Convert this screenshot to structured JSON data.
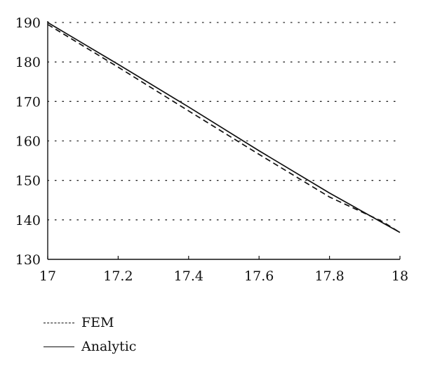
{
  "chart_data": {
    "type": "line",
    "title": "",
    "xlabel": "",
    "ylabel": "",
    "xlim": [
      17,
      18
    ],
    "ylim": [
      130,
      190
    ],
    "x_ticks": [
      17,
      17.2,
      17.4,
      17.6,
      17.8,
      18
    ],
    "x_tick_labels": [
      "17",
      "17.2",
      "17.4",
      "17.6",
      "17.8",
      "18"
    ],
    "y_ticks": [
      130,
      140,
      150,
      160,
      170,
      180,
      190
    ],
    "y_tick_labels": [
      "130",
      "140",
      "150",
      "160",
      "170",
      "180",
      "190"
    ],
    "grid": "horizontal dotted",
    "legend_position": "bottom-left",
    "series": [
      {
        "name": "FEM",
        "style": "dashed",
        "color": "#111111",
        "x": [
          17.0,
          17.2,
          17.4,
          17.6,
          17.8,
          17.95,
          18.0
        ],
        "y": [
          189.5,
          178.7,
          167.6,
          156.6,
          145.8,
          139.6,
          136.8
        ]
      },
      {
        "name": "Analytic",
        "style": "solid",
        "color": "#111111",
        "x": [
          17.0,
          17.2,
          17.4,
          17.6,
          17.8,
          18.0
        ],
        "y": [
          190.0,
          179.4,
          168.6,
          157.5,
          146.8,
          136.8
        ]
      }
    ]
  }
}
